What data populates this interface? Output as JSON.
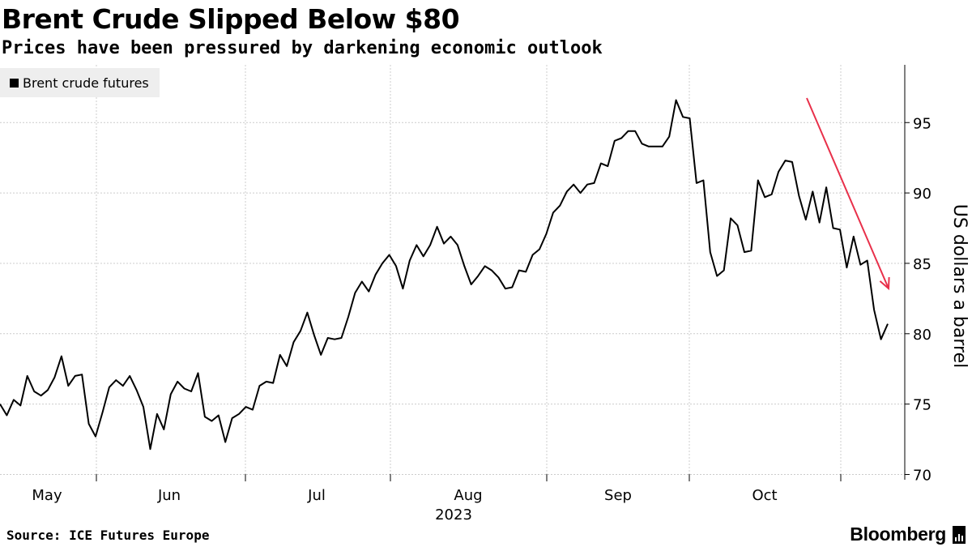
{
  "chart_data": {
    "type": "line",
    "title": "Brent Crude Slipped Below $80",
    "subtitle": "Prices have been pressured by darkening economic outlook",
    "ylabel": "US dollars a barrel",
    "ylim": [
      70,
      99
    ],
    "yticks": [
      70,
      75,
      80,
      85,
      90,
      95
    ],
    "year_label": "2023",
    "months": [
      "May",
      "Jun",
      "Jul",
      "Aug",
      "Sep",
      "Oct"
    ],
    "legend": "Brent crude futures",
    "series": [
      {
        "name": "Brent crude futures",
        "values": [
          75.0,
          74.2,
          75.3,
          74.9,
          77.0,
          75.9,
          75.6,
          76.0,
          76.9,
          78.4,
          76.3,
          77.0,
          77.1,
          73.6,
          72.7,
          74.4,
          76.2,
          76.7,
          76.3,
          77.0,
          76.0,
          74.8,
          71.8,
          74.3,
          73.2,
          75.7,
          76.6,
          76.1,
          75.9,
          77.2,
          74.1,
          73.8,
          74.2,
          72.3,
          74.0,
          74.3,
          74.8,
          74.6,
          76.3,
          76.6,
          76.5,
          78.5,
          77.7,
          79.4,
          80.2,
          81.5,
          79.9,
          78.5,
          79.7,
          79.6,
          79.7,
          81.2,
          82.9,
          83.7,
          83.0,
          84.2,
          85.0,
          85.6,
          84.8,
          83.2,
          85.2,
          86.3,
          85.5,
          86.3,
          87.6,
          86.4,
          86.9,
          86.3,
          84.8,
          83.5,
          84.1,
          84.8,
          84.5,
          84.0,
          83.2,
          83.3,
          84.5,
          84.4,
          85.6,
          86.0,
          87.1,
          88.6,
          89.1,
          90.1,
          90.6,
          90.0,
          90.6,
          90.7,
          92.1,
          91.9,
          93.7,
          93.9,
          94.4,
          94.4,
          93.5,
          93.3,
          93.3,
          93.3,
          94.0,
          96.6,
          95.4,
          95.3,
          90.7,
          90.9,
          85.8,
          84.1,
          84.5,
          88.2,
          87.7,
          85.8,
          85.9,
          90.9,
          89.7,
          89.9,
          91.5,
          92.3,
          92.2,
          89.8,
          88.1,
          90.1,
          87.9,
          90.4,
          87.5,
          87.4,
          84.7,
          86.9,
          84.9,
          85.2,
          81.7,
          79.6,
          80.7
        ]
      }
    ],
    "annotation": {
      "type": "arrow",
      "color": "#e8304a",
      "meaning": "downward trend"
    }
  },
  "footer": {
    "source": "Source: ICE Futures Europe",
    "brand": "Bloomberg"
  },
  "colors": {
    "line": "#000000",
    "grid": "#cccccc",
    "arrow": "#e8304a",
    "legend_bg": "#eeeeee"
  }
}
